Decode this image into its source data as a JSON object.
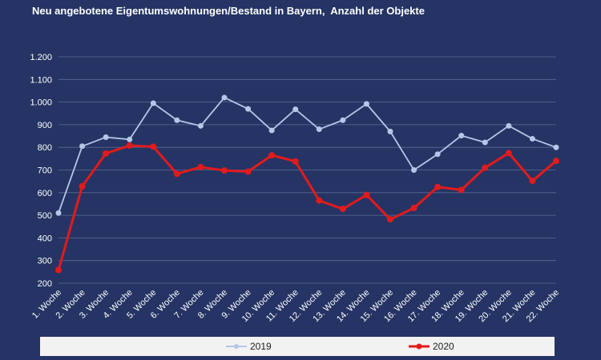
{
  "chart_data": {
    "type": "line",
    "title": "Neu angebotene Eigentumswohnungen/Bestand in Bayern,  Anzahl der Objekte",
    "categories": [
      "1. Woche",
      "2. Woche",
      "3. Woche",
      "4. Woche",
      "5. Woche",
      "6. Woche",
      "7. Woche",
      "8. Woche",
      "9. Woche",
      "10. Woche",
      "11. Woche",
      "12. Woche",
      "13. Woche",
      "14. Woche",
      "15. Woche",
      "16. Woche",
      "17. Woche",
      "18. Woche",
      "19. Woche",
      "20. Woche",
      "21. Woche",
      "22. Woche"
    ],
    "series": [
      {
        "name": "2019",
        "color": "#b4c7e7",
        "values": [
          510,
          805,
          845,
          835,
          995,
          920,
          895,
          1020,
          970,
          875,
          968,
          880,
          920,
          992,
          870,
          700,
          770,
          852,
          822,
          895,
          838,
          800
        ]
      },
      {
        "name": "2020",
        "color": "#e31a1c",
        "values": [
          258,
          628,
          773,
          808,
          803,
          683,
          713,
          698,
          693,
          765,
          738,
          565,
          528,
          590,
          482,
          532,
          625,
          612,
          710,
          775,
          652,
          740
        ]
      }
    ],
    "yticks": [
      "200",
      "300",
      "400",
      "500",
      "600",
      "700",
      "800",
      "900",
      "1.000",
      "1.100",
      "1.200"
    ],
    "ylim": [
      200,
      1200
    ],
    "grid": true,
    "legend_position": "bottom"
  }
}
